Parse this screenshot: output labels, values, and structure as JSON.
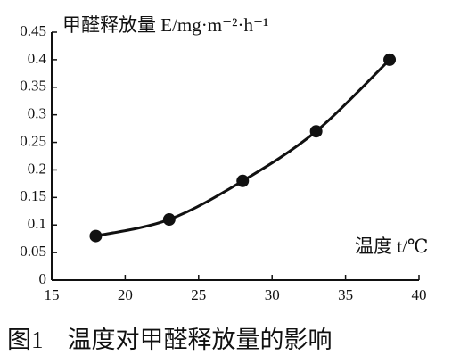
{
  "chart_data": {
    "type": "line",
    "y_label": "甲醛释放量 E/mg·m⁻²·h⁻¹",
    "x_label": "温度 t/℃",
    "caption": "图1　温度对甲醛释放量的影响",
    "x": [
      18,
      23,
      28,
      33,
      38
    ],
    "series": [
      {
        "color": "#111111",
        "values": [
          0.08,
          0.11,
          0.18,
          0.27,
          0.4
        ]
      }
    ],
    "xlim": [
      15,
      40
    ],
    "xticks": [
      15,
      20,
      25,
      30,
      35,
      40
    ],
    "ylim": [
      0,
      0.45
    ],
    "yticks": [
      0,
      0.05,
      0.1,
      0.15,
      0.2,
      0.25,
      0.3,
      0.35,
      0.4,
      0.45
    ]
  }
}
